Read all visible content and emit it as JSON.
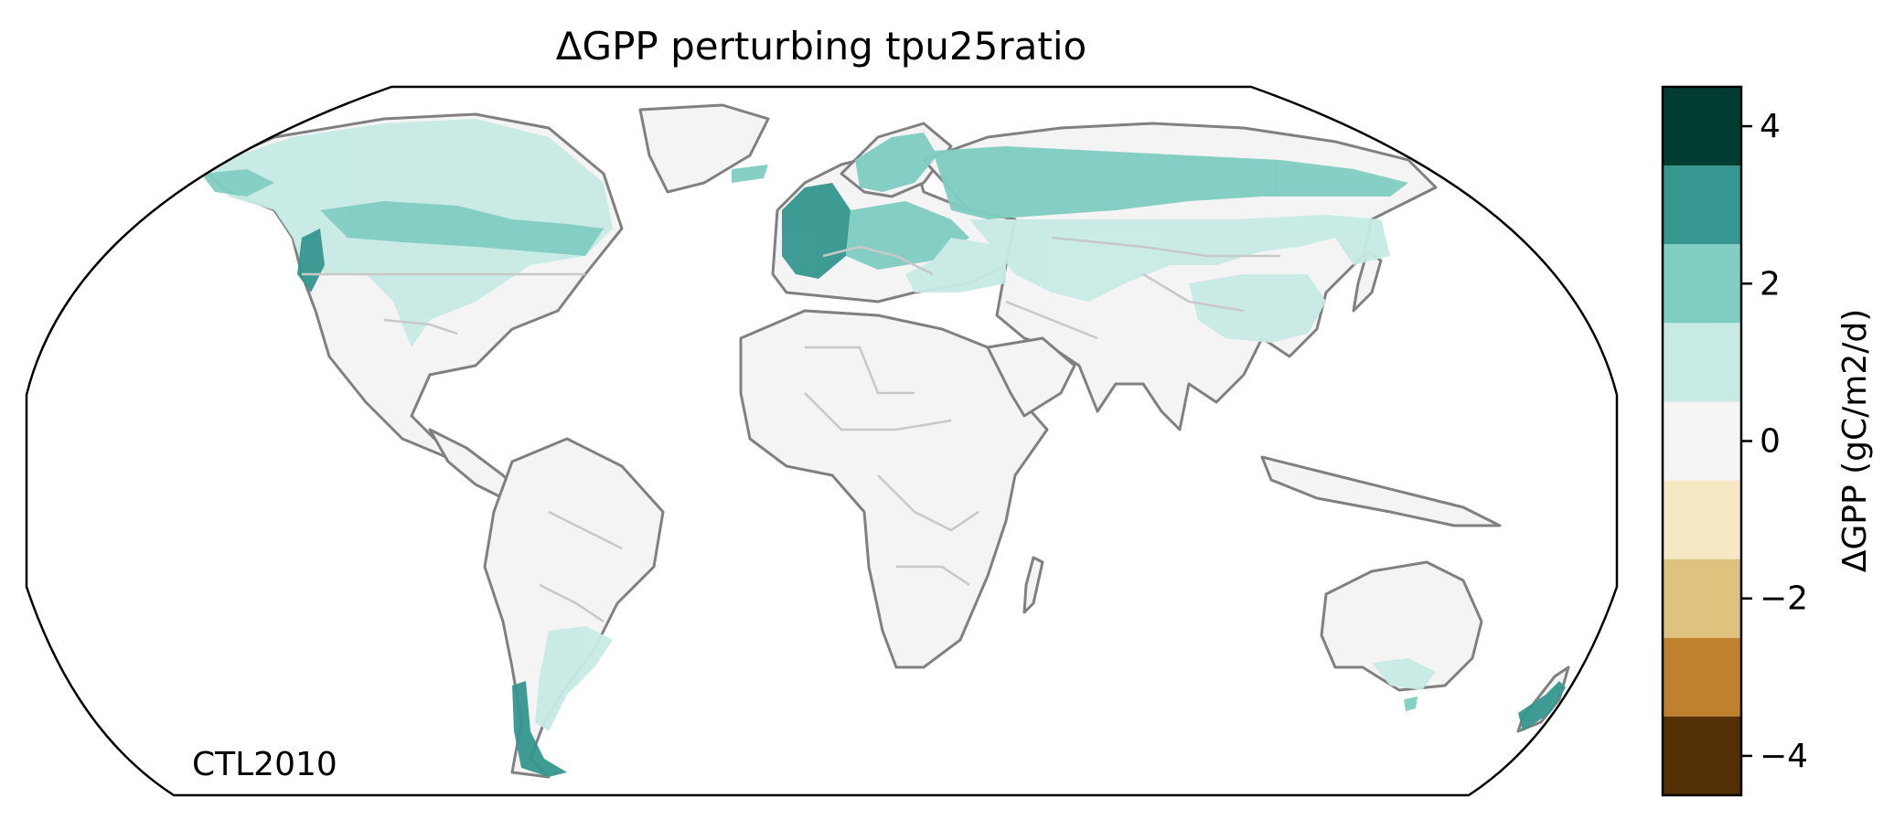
{
  "title": "ΔGPP perturbing tpu25ratio",
  "corner_label": "CTL2010",
  "colorbar": {
    "label": "ΔGPP (gC/m2/d)",
    "ticks": [
      "4",
      "2",
      "0",
      "−2",
      "−4"
    ],
    "tick_values": [
      4,
      2,
      0,
      -2,
      -4
    ],
    "vmin": -4.5,
    "vmax": 4.5,
    "levels": [
      -4.5,
      -3.5,
      -2.5,
      -1.5,
      -0.5,
      0.5,
      1.5,
      2.5,
      3.5,
      4.5
    ],
    "colors": [
      "#543005",
      "#8c510a",
      "#bf812d",
      "#dfc27d",
      "#f6e8c3",
      "#f5f5f5",
      "#c7eae5",
      "#80cdc1",
      "#35978f",
      "#01665e",
      "#003c30"
    ]
  },
  "map": {
    "projection": "Robinson",
    "land_color": "#f5f5f5",
    "coastline_color": "#808080",
    "border_color": "#c8c8c8"
  }
}
